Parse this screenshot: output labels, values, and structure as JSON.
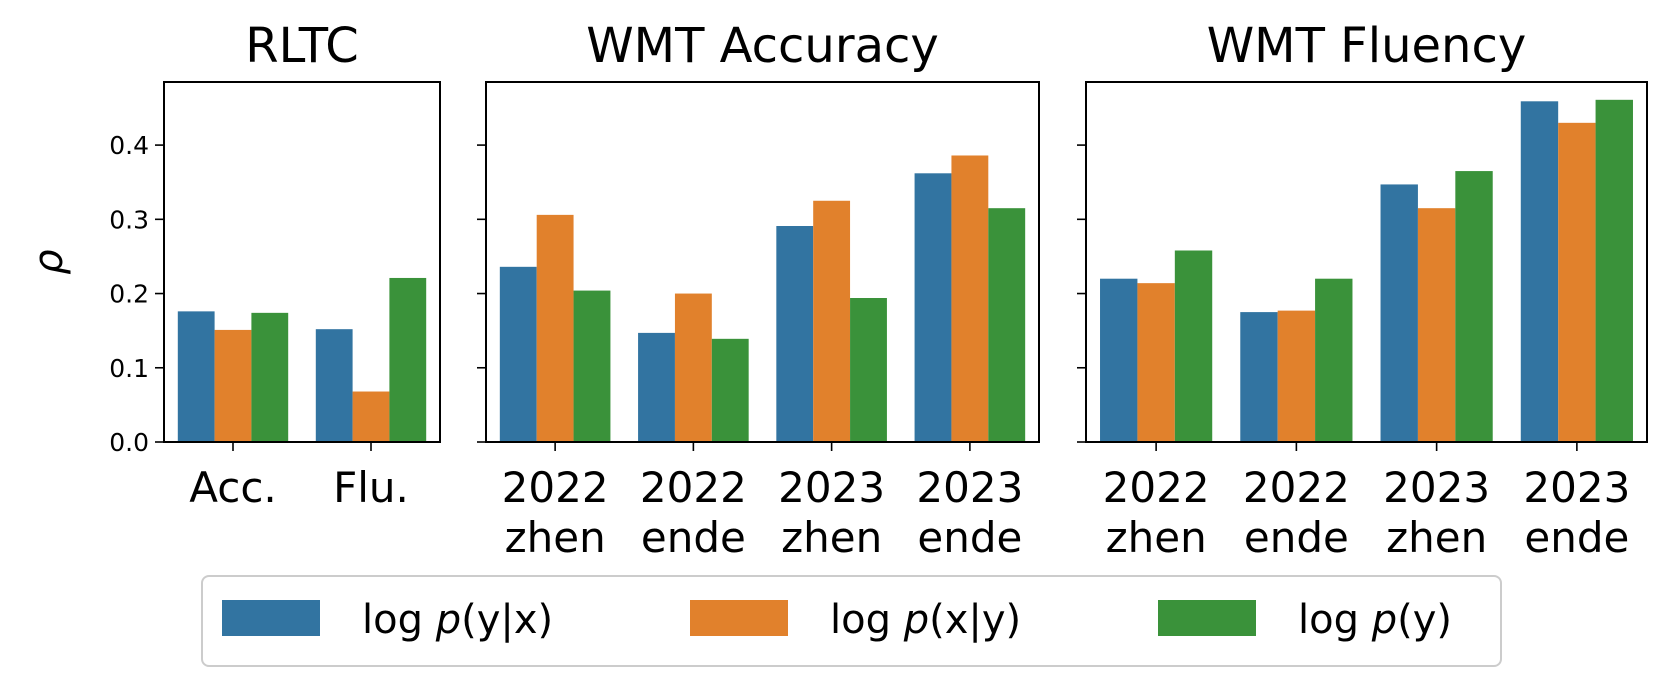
{
  "chart_data": [
    {
      "type": "bar",
      "title": "RLTC",
      "categories": [
        "Acc.",
        "Flu."
      ],
      "ylabel": "ρ",
      "ylim": [
        0,
        0.485
      ],
      "yticks": [
        "0.0",
        "0.1",
        "0.2",
        "0.3",
        "0.4"
      ],
      "series": [
        {
          "values": [
            0.176,
            0.152
          ]
        },
        {
          "values": [
            0.151,
            0.068
          ]
        },
        {
          "values": [
            0.174,
            0.221
          ]
        }
      ]
    },
    {
      "type": "bar",
      "title": "WMT Accuracy",
      "categories": [
        [
          "2022",
          "zhen"
        ],
        [
          "2022",
          "ende"
        ],
        [
          "2023",
          "zhen"
        ],
        [
          "2023",
          "ende"
        ]
      ],
      "ylim": [
        0,
        0.485
      ],
      "series": [
        {
          "values": [
            0.236,
            0.147,
            0.291,
            0.362
          ]
        },
        {
          "values": [
            0.306,
            0.2,
            0.325,
            0.386
          ]
        },
        {
          "values": [
            0.204,
            0.139,
            0.194,
            0.315
          ]
        }
      ]
    },
    {
      "type": "bar",
      "title": "WMT Fluency",
      "categories": [
        [
          "2022",
          "zhen"
        ],
        [
          "2022",
          "ende"
        ],
        [
          "2023",
          "zhen"
        ],
        [
          "2023",
          "ende"
        ]
      ],
      "ylim": [
        0,
        0.485
      ],
      "series": [
        {
          "values": [
            0.22,
            0.175,
            0.347,
            0.459
          ]
        },
        {
          "values": [
            0.214,
            0.177,
            0.315,
            0.43
          ]
        },
        {
          "values": [
            0.258,
            0.22,
            0.365,
            0.461
          ]
        }
      ]
    }
  ],
  "legend": {
    "placement": "bottom-center",
    "entries": [
      {
        "text": "log p(y|x)",
        "prefix": "log ",
        "italic": "p",
        "rest": "(y|x)",
        "color": "#3274a1"
      },
      {
        "text": "log p(x|y)",
        "prefix": "log ",
        "italic": "p",
        "rest": "(x|y)",
        "color": "#e1812c"
      },
      {
        "text": "log p(y)",
        "prefix": "log ",
        "italic": "p",
        "rest": "(y)",
        "color": "#3a923a"
      }
    ]
  },
  "colors": [
    "#3274a1",
    "#e1812c",
    "#3a923a"
  ]
}
